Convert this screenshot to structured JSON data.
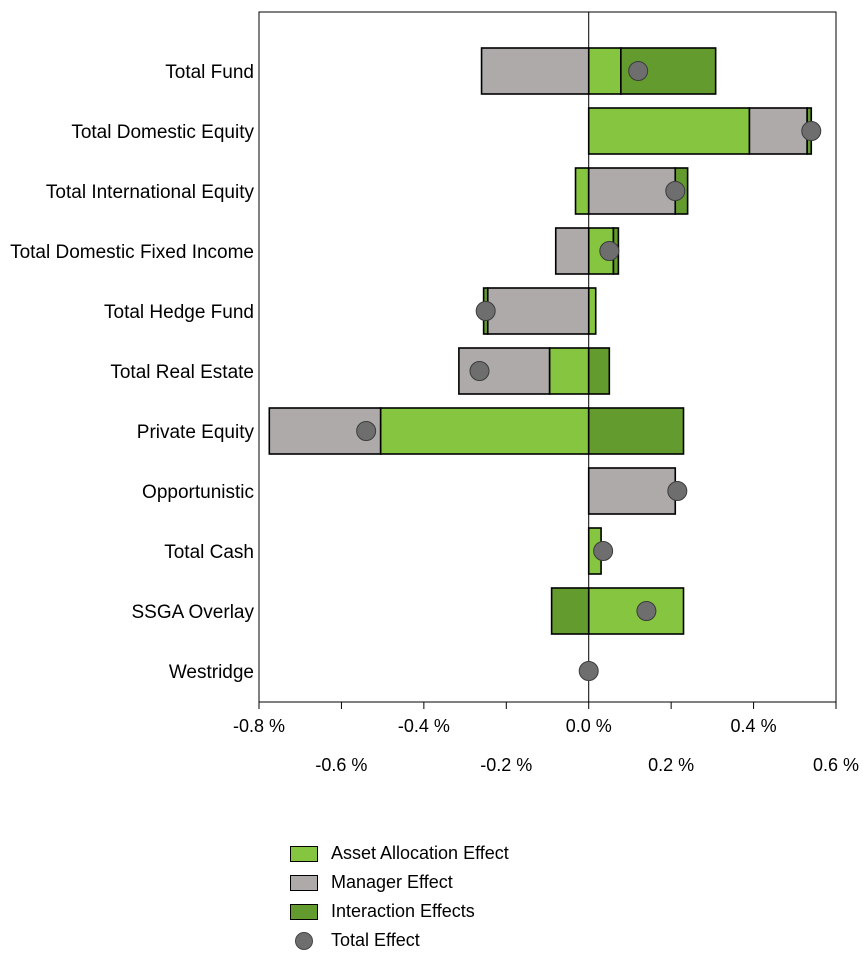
{
  "chart_data": {
    "type": "bar",
    "orientation": "horizontal-stacked-with-total-markers",
    "categories": [
      "Total Fund",
      "Total Domestic Equity",
      "Total International Equity",
      "Total Domestic Fixed Income",
      "Total Hedge Fund",
      "Total Real Estate",
      "Private Equity",
      "Opportunistic",
      "Total Cash",
      "SSGA Overlay",
      "Westridge"
    ],
    "series": [
      {
        "name": "Asset Allocation Effect",
        "color": "#86c540",
        "values": [
          0.078,
          0.39,
          -0.032,
          0.06,
          0.017,
          -0.095,
          -0.505,
          0.0,
          0.03,
          0.23,
          0.0
        ]
      },
      {
        "name": "Manager Effect",
        "color": "#aeaaaa",
        "values": [
          -0.26,
          0.14,
          0.21,
          -0.08,
          -0.245,
          -0.22,
          -0.27,
          0.21,
          0.0,
          0.0,
          0.0
        ]
      },
      {
        "name": "Interaction Effects",
        "color": "#639b2e",
        "values": [
          0.23,
          0.01,
          0.03,
          0.012,
          -0.01,
          0.05,
          0.23,
          0.0,
          0.0,
          -0.09,
          0.0
        ]
      }
    ],
    "total_effect": {
      "name": "Total Effect",
      "color": "#6e6e6e",
      "values": [
        0.12,
        0.54,
        0.21,
        0.05,
        -0.25,
        -0.265,
        -0.54,
        0.215,
        0.035,
        0.14,
        0.0
      ]
    },
    "xlim": [
      -0.8,
      0.6
    ],
    "ticks_major": [
      "-0.8 %",
      "-0.4 %",
      "0.0 %",
      "0.4 %"
    ],
    "ticks_minor": [
      "-0.6 %",
      "-0.2 %",
      "0.2 %",
      "0.6 %"
    ],
    "legend_position": "bottom",
    "grid": false
  }
}
